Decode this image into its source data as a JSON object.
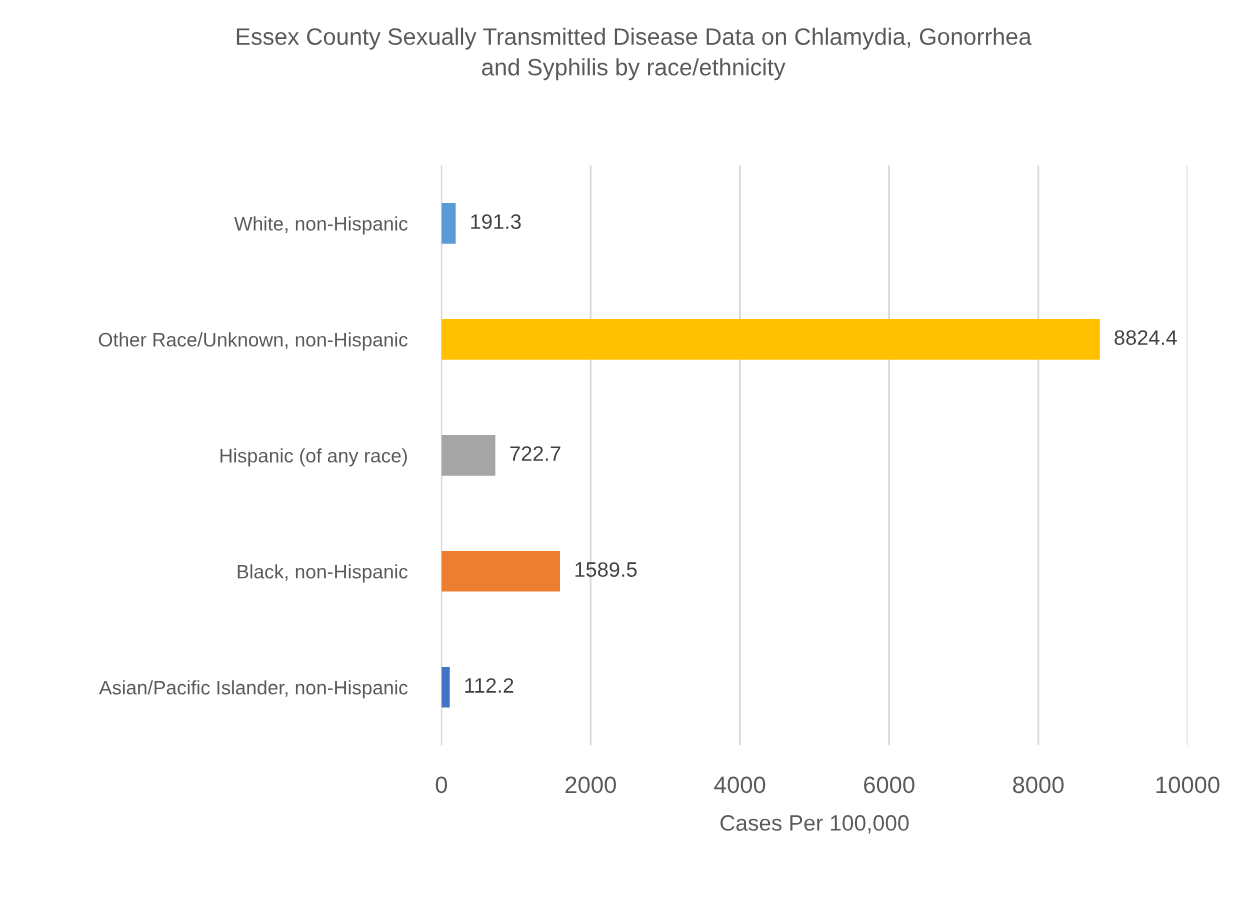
{
  "chart_data": {
    "type": "bar",
    "orientation": "horizontal",
    "title": "Essex County Sexually Transmitted Disease Data on Chlamydia, Gonorrhea\nand Syphilis by race/ethnicity",
    "xlabel": "Cases Per 100,000",
    "categories": [
      "White, non-Hispanic",
      "Other Race/Unknown, non-Hispanic",
      "Hispanic (of any race)",
      "Black, non-Hispanic",
      "Asian/Pacific Islander, non-Hispanic"
    ],
    "values": [
      191.3,
      8824.4,
      722.7,
      1589.5,
      112.2
    ],
    "colors": [
      "#5b9bd5",
      "#ffc000",
      "#a5a5a5",
      "#ed7d31",
      "#4472c4"
    ],
    "xlim": [
      0,
      10000
    ],
    "xticks": [
      0,
      2000,
      4000,
      6000,
      8000,
      10000
    ],
    "grid": "x",
    "data_labels": true
  }
}
